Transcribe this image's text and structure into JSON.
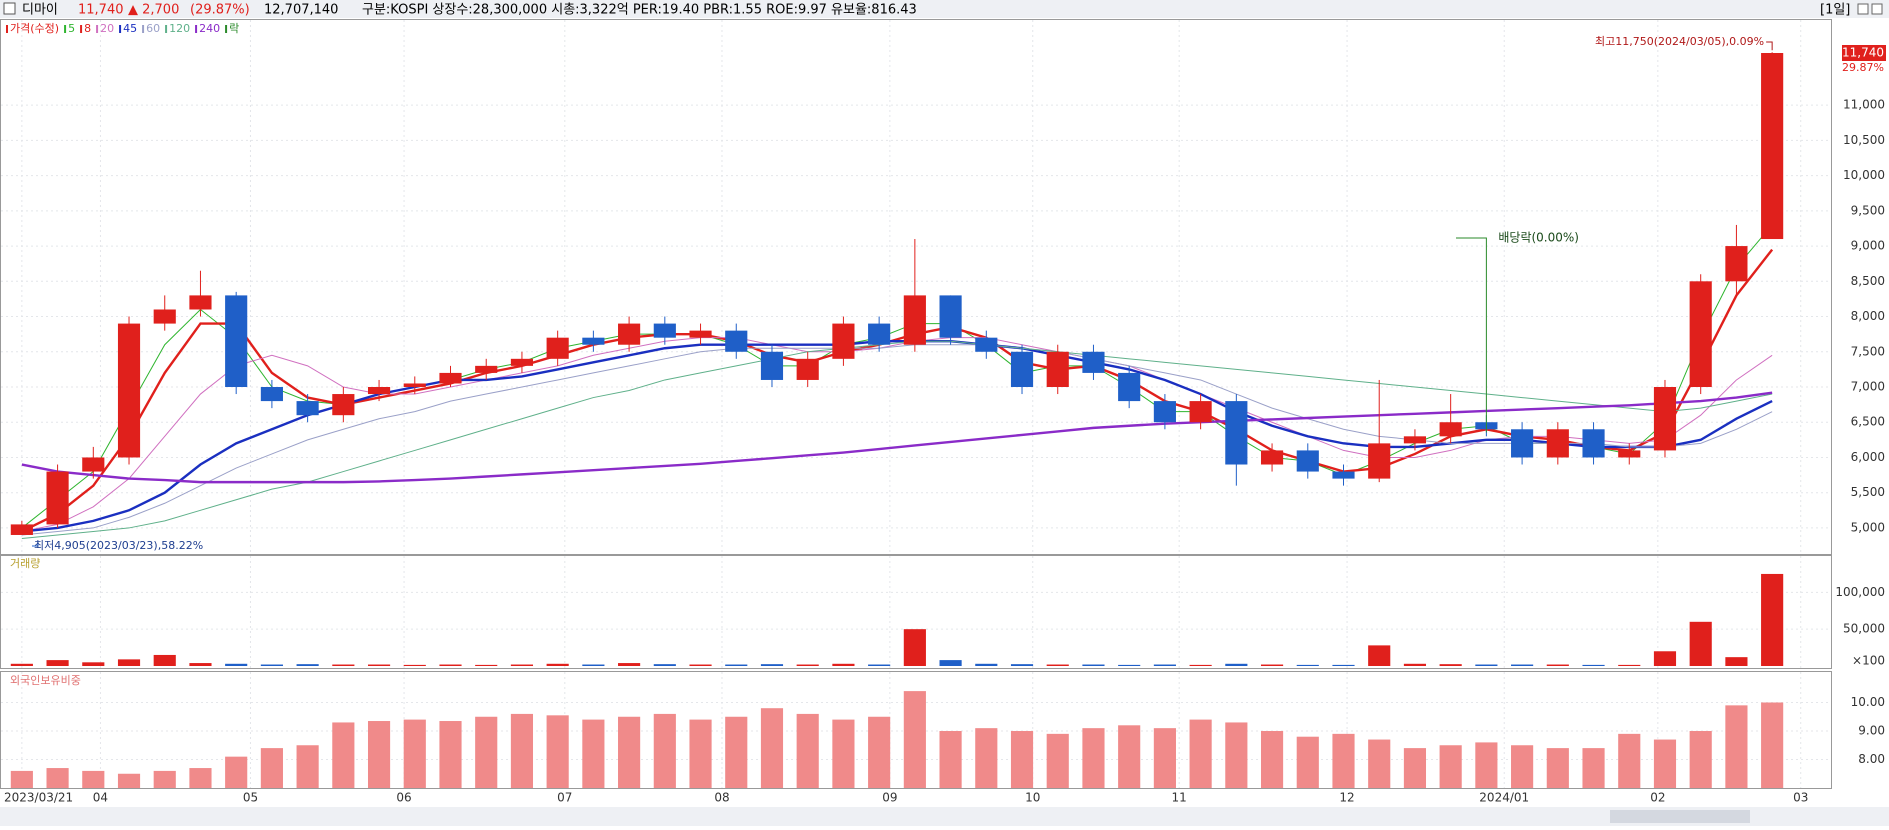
{
  "header": {
    "name": "디마이",
    "price": "11,740",
    "change": "▲ 2,700",
    "change_pct": "(29.87%)",
    "volume": "12,707,140",
    "info": "구분:KOSPI 상장수:28,300,000 시총:3,322억 PER:19.40 PBR:1.55 ROE:9.97 유보율:816.43",
    "period": "[1일]"
  },
  "chart_data": [
    {
      "type": "candlestick",
      "legend_title": "가격(수정)",
      "up_color": "#e0201c",
      "down_color": "#1f5fc8",
      "open": [
        4900,
        5050,
        5800,
        6000,
        7900,
        8100,
        8300,
        7000,
        6800,
        6600,
        6900,
        7000,
        7050,
        7200,
        7300,
        7400,
        7700,
        7600,
        7900,
        7700,
        7800,
        7500,
        7100,
        7400,
        7900,
        7600,
        8300,
        7700,
        7500,
        7000,
        7500,
        7200,
        6800,
        6500,
        6800,
        5900,
        6100,
        5800,
        5700,
        6200,
        6300,
        6500,
        6400,
        6000,
        6400,
        6000,
        6100,
        7000,
        8500,
        9100
      ],
      "high": [
        5100,
        5900,
        6150,
        8000,
        8300,
        8650,
        8350,
        7100,
        6900,
        7000,
        7100,
        7150,
        7300,
        7400,
        7500,
        7800,
        7800,
        8000,
        8000,
        7900,
        7900,
        7600,
        7500,
        8000,
        8000,
        9100,
        8300,
        7800,
        7600,
        7600,
        7600,
        7300,
        6900,
        6900,
        6900,
        6200,
        6200,
        5900,
        7100,
        6400,
        6900,
        6600,
        6500,
        6500,
        6500,
        6200,
        7100,
        8600,
        9300,
        11750
      ],
      "low": [
        4905,
        5000,
        5700,
        5900,
        7800,
        8000,
        6900,
        6700,
        6500,
        6500,
        6800,
        6900,
        7000,
        7100,
        7200,
        7300,
        7500,
        7500,
        7600,
        7600,
        7400,
        7000,
        7000,
        7300,
        7500,
        7500,
        7600,
        7400,
        6900,
        6900,
        7100,
        6700,
        6400,
        6400,
        5600,
        5800,
        5700,
        5600,
        5650,
        6100,
        6200,
        6300,
        5900,
        5900,
        5900,
        5900,
        6000,
        6900,
        8300,
        9100
      ],
      "close": [
        5050,
        5800,
        6000,
        7900,
        8100,
        8300,
        7000,
        6800,
        6600,
        6900,
        7000,
        7050,
        7200,
        7300,
        7400,
        7700,
        7600,
        7900,
        7700,
        7800,
        7500,
        7100,
        7400,
        7900,
        7600,
        8300,
        7700,
        7500,
        7000,
        7500,
        7200,
        6800,
        6500,
        6800,
        5900,
        6100,
        5800,
        5700,
        6200,
        6300,
        6500,
        6400,
        6000,
        6400,
        6000,
        6100,
        7000,
        8500,
        9000,
        11740
      ],
      "series": [
        {
          "name": "5",
          "color": "#2fb52f",
          "values": [
            5000,
            5400,
            5800,
            6700,
            7600,
            8100,
            7700,
            7000,
            6800,
            6750,
            6900,
            7000,
            7100,
            7250,
            7350,
            7550,
            7650,
            7750,
            7750,
            7750,
            7600,
            7300,
            7300,
            7600,
            7700,
            7900,
            7900,
            7600,
            7200,
            7300,
            7300,
            7000,
            6650,
            6650,
            6300,
            6000,
            5950,
            5750,
            5950,
            6200,
            6400,
            6450,
            6200,
            6200,
            6150,
            6050,
            6500,
            7700,
            8700,
            9300
          ]
        },
        {
          "name": "8",
          "color": "#e0201c",
          "values": [
            4950,
            5200,
            5600,
            6300,
            7200,
            7900,
            7900,
            7200,
            6850,
            6750,
            6850,
            6950,
            7050,
            7200,
            7300,
            7450,
            7600,
            7700,
            7750,
            7750,
            7650,
            7450,
            7350,
            7500,
            7600,
            7750,
            7850,
            7700,
            7350,
            7250,
            7300,
            7100,
            6800,
            6650,
            6400,
            6100,
            5950,
            5800,
            5850,
            6050,
            6300,
            6400,
            6300,
            6250,
            6150,
            6100,
            6350,
            7300,
            8300,
            8950
          ]
        },
        {
          "name": "20",
          "color": "#d070c0",
          "values": [
            4950,
            5050,
            5300,
            5700,
            6300,
            6900,
            7300,
            7450,
            7300,
            7000,
            6900,
            6900,
            7000,
            7100,
            7200,
            7300,
            7450,
            7550,
            7650,
            7700,
            7700,
            7600,
            7500,
            7500,
            7550,
            7650,
            7700,
            7700,
            7600,
            7500,
            7400,
            7300,
            7100,
            6900,
            6700,
            6500,
            6300,
            6100,
            6000,
            6000,
            6100,
            6250,
            6300,
            6300,
            6250,
            6200,
            6250,
            6600,
            7100,
            7450
          ]
        },
        {
          "name": "45",
          "color": "#1a2fc0",
          "values": [
            4950,
            5000,
            5100,
            5250,
            5500,
            5900,
            6200,
            6400,
            6600,
            6750,
            6900,
            7000,
            7100,
            7100,
            7150,
            7250,
            7350,
            7450,
            7550,
            7600,
            7600,
            7600,
            7600,
            7600,
            7650,
            7650,
            7650,
            7600,
            7550,
            7450,
            7350,
            7250,
            7100,
            6900,
            6650,
            6450,
            6300,
            6200,
            6150,
            6150,
            6200,
            6250,
            6250,
            6200,
            6150,
            6150,
            6150,
            6250,
            6550,
            6800
          ]
        },
        {
          "name": "60",
          "color": "#9aa0c8",
          "values": [
            4900,
            4950,
            5000,
            5150,
            5350,
            5600,
            5850,
            6050,
            6250,
            6400,
            6550,
            6650,
            6800,
            6900,
            7000,
            7100,
            7200,
            7300,
            7400,
            7500,
            7550,
            7550,
            7550,
            7550,
            7550,
            7600,
            7600,
            7600,
            7550,
            7500,
            7400,
            7300,
            7200,
            7100,
            6900,
            6700,
            6550,
            6400,
            6300,
            6250,
            6200,
            6200,
            6200,
            6200,
            6200,
            6150,
            6150,
            6200,
            6400,
            6650
          ]
        },
        {
          "name": "120",
          "color": "#5fb08a",
          "values": [
            4850,
            4900,
            4950,
            5000,
            5100,
            5250,
            5400,
            5550,
            5650,
            5800,
            5950,
            6100,
            6250,
            6400,
            6550,
            6700,
            6850,
            6950,
            7100,
            7200,
            7300,
            7400,
            7500,
            7550,
            7600,
            7650,
            7650,
            7600,
            7550,
            7500,
            7450,
            7400,
            7350,
            7300,
            7250,
            7200,
            7150,
            7100,
            7050,
            7000,
            6950,
            6900,
            6850,
            6800,
            6750,
            6700,
            6650,
            6700,
            6800,
            6900
          ]
        },
        {
          "name": "240",
          "color": "#8a2bc8",
          "values": [
            5900,
            5800,
            5750,
            5700,
            5680,
            5650,
            5650,
            5650,
            5650,
            5650,
            5660,
            5680,
            5700,
            5730,
            5760,
            5790,
            5820,
            5850,
            5880,
            5910,
            5950,
            5990,
            6030,
            6070,
            6120,
            6170,
            6220,
            6270,
            6320,
            6370,
            6420,
            6450,
            6480,
            6500,
            6520,
            6540,
            6560,
            6580,
            6600,
            6620,
            6640,
            6660,
            6680,
            6700,
            6720,
            6740,
            6770,
            6800,
            6850,
            6920
          ]
        }
      ],
      "event_legend": "락",
      "event_color": "#2a8a2a",
      "event": {
        "label": "배당락(0.00%)",
        "x": 41
      },
      "high_label": "최고11,750(2024/03/05),0.09%",
      "low_label": "최저4,905(2023/03/23),58.22%",
      "last": {
        "value": 11740,
        "label": "11,740",
        "pct": "29.87%"
      },
      "xlim": [
        -0.5,
        49.5
      ],
      "xticks": [
        {
          "value": 0,
          "label": "2023/03/21"
        },
        {
          "value": 2.2,
          "label": "04"
        },
        {
          "value": 6.4,
          "label": "05"
        },
        {
          "value": 10.7,
          "label": "06"
        },
        {
          "value": 15.2,
          "label": "07"
        },
        {
          "value": 19.6,
          "label": "08"
        },
        {
          "value": 24.3,
          "label": "09"
        },
        {
          "value": 28.3,
          "label": "10"
        },
        {
          "value": 32.4,
          "label": "11"
        },
        {
          "value": 37.1,
          "label": "12"
        },
        {
          "value": 41.5,
          "label": "2024/01"
        },
        {
          "value": 45.8,
          "label": "02"
        },
        {
          "value": 49.8,
          "label": "03"
        }
      ],
      "ylim": [
        4630,
        12180
      ],
      "yticks": [
        {
          "value": 5000,
          "label": "5,000"
        },
        {
          "value": 5500,
          "label": "5,500"
        },
        {
          "value": 6000,
          "label": "6,000"
        },
        {
          "value": 6500,
          "label": "6,500"
        },
        {
          "value": 7000,
          "label": "7,000"
        },
        {
          "value": 7500,
          "label": "7,500"
        },
        {
          "value": 8000,
          "label": "8,000"
        },
        {
          "value": 8500,
          "label": "8,500"
        },
        {
          "value": 9000,
          "label": "9,000"
        },
        {
          "value": 9500,
          "label": "9,500"
        },
        {
          "value": 10000,
          "label": "10,000"
        },
        {
          "value": 10500,
          "label": "10,500"
        },
        {
          "value": 11000,
          "label": "11,000"
        }
      ],
      "grid": true
    },
    {
      "type": "bar",
      "title": "거래량",
      "unit_label": "×100",
      "values": [
        3000,
        8000,
        5000,
        9000,
        15000,
        4000,
        3000,
        2000,
        2500,
        2000,
        2000,
        1500,
        2000,
        1500,
        2000,
        3000,
        2000,
        4000,
        2500,
        2000,
        2000,
        2500,
        2000,
        3000,
        2000,
        50000,
        8000,
        3000,
        2500,
        2000,
        2000,
        1500,
        2000,
        1500,
        3000,
        2000,
        1500,
        1500,
        28000,
        3000,
        2500,
        2000,
        2000,
        2000,
        1500,
        1500,
        20000,
        60000,
        12000,
        125000
      ],
      "ylim": [
        0,
        148000
      ],
      "yticks": [
        {
          "value": 50000,
          "label": "50,000"
        },
        {
          "value": 100000,
          "label": "100,000"
        }
      ],
      "grid": true
    },
    {
      "type": "bar",
      "title": "외국인보유비중",
      "color": "#f08a8a",
      "values": [
        7.6,
        7.7,
        7.6,
        7.5,
        7.6,
        7.7,
        8.1,
        8.4,
        8.5,
        9.3,
        9.35,
        9.4,
        9.35,
        9.5,
        9.6,
        9.55,
        9.4,
        9.5,
        9.6,
        9.4,
        9.5,
        9.8,
        9.6,
        9.4,
        9.5,
        10.4,
        9.0,
        9.1,
        9.0,
        8.9,
        9.1,
        9.2,
        9.1,
        9.4,
        9.3,
        9.0,
        8.8,
        8.9,
        8.7,
        8.4,
        8.5,
        8.6,
        8.5,
        8.4,
        8.4,
        8.9,
        8.7,
        9.0,
        9.9,
        10.0
      ],
      "ylim": [
        7,
        11
      ],
      "yticks": [
        {
          "value": 8,
          "label": "8.00"
        },
        {
          "value": 9,
          "label": "9.00"
        },
        {
          "value": 10,
          "label": "10.00"
        }
      ],
      "grid": true
    }
  ]
}
